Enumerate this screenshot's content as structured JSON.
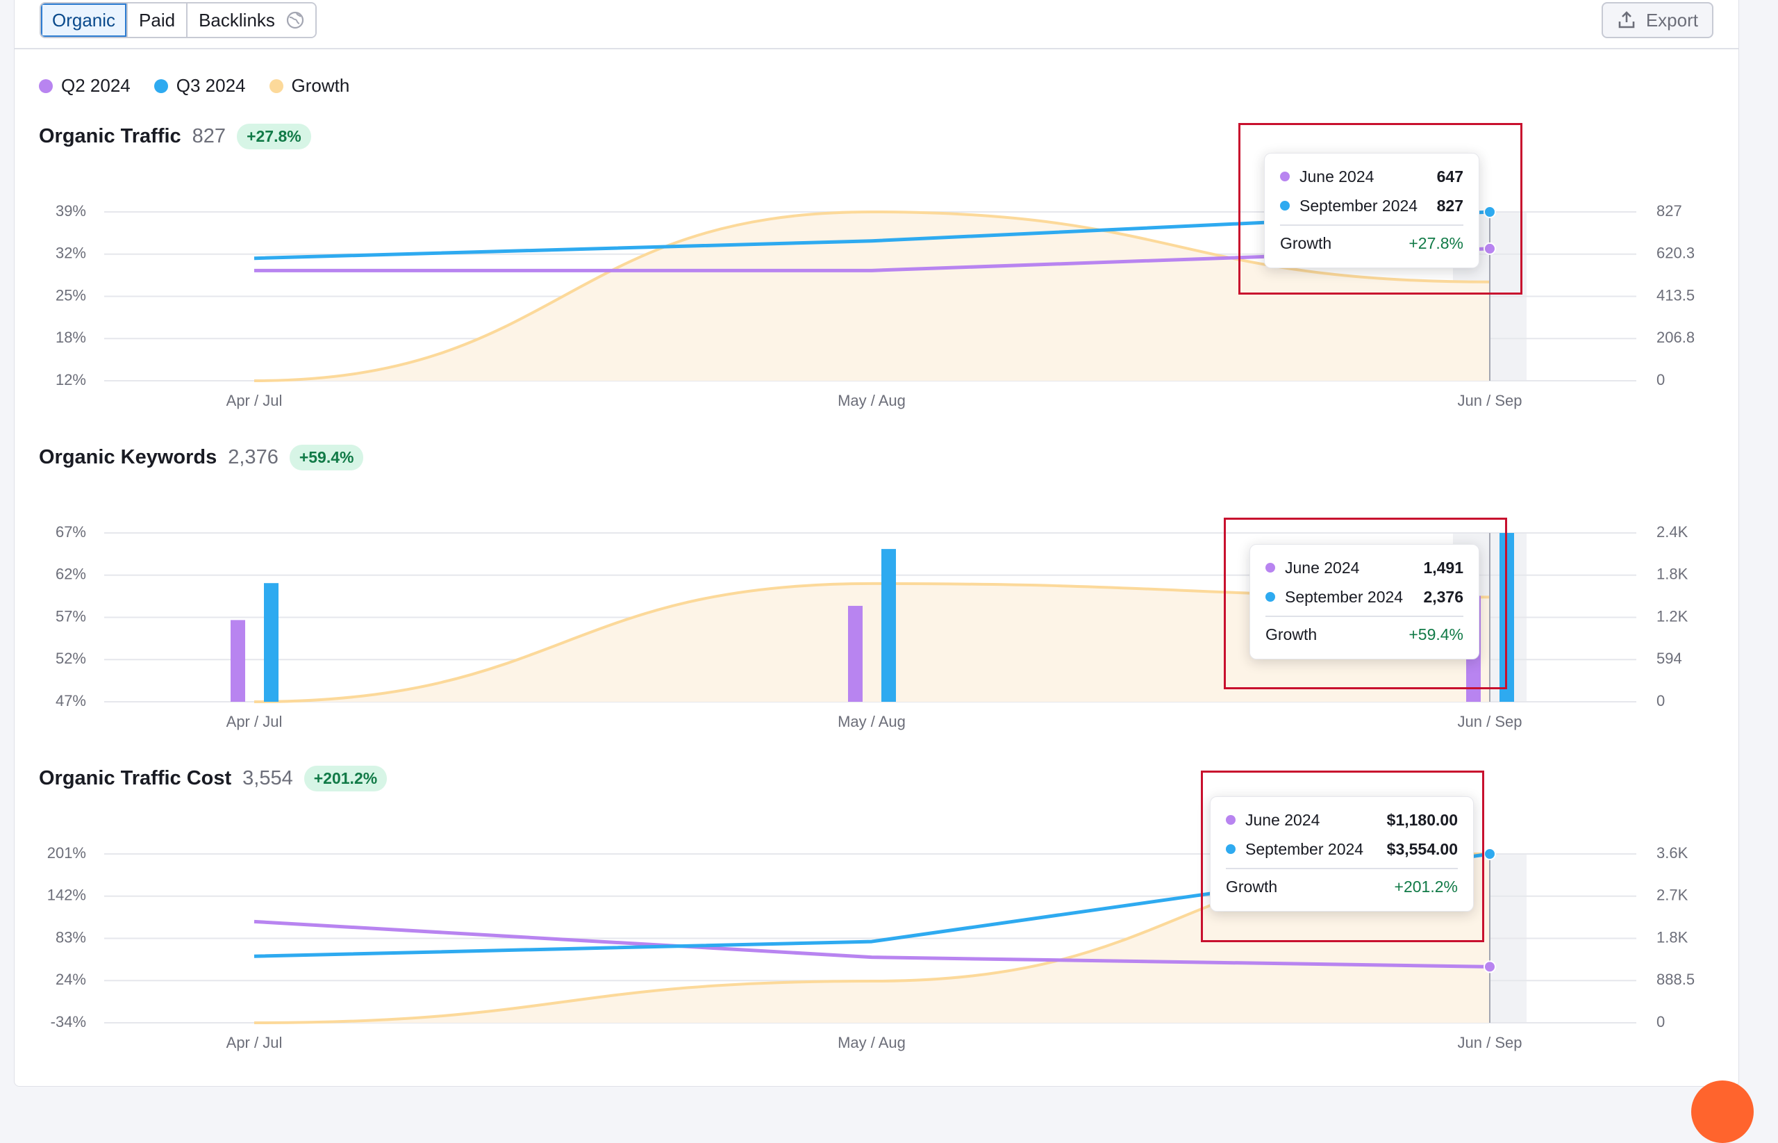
{
  "toolbar": {
    "tabs": [
      {
        "label": "Organic",
        "active": true
      },
      {
        "label": "Paid",
        "active": false
      },
      {
        "label": "Backlinks",
        "active": false,
        "icon": "globe-icon"
      }
    ],
    "export_label": "Export",
    "export_icon": "export-icon"
  },
  "legend": [
    {
      "label": "Q2 2024",
      "color": "#b884f0"
    },
    {
      "label": "Q3 2024",
      "color": "#2eaaf0"
    },
    {
      "label": "Growth",
      "color": "#fcd99a"
    }
  ],
  "colors": {
    "q2": "#b884f0",
    "q3": "#2eaaf0",
    "growth": "#fcd99a",
    "growth_fill": "#fdf4e7",
    "badge_text": "#117a47",
    "badge_bg": "#d7f5e6",
    "highlight": "#c8102e"
  },
  "charts": [
    {
      "title": "Organic Traffic",
      "value": "827",
      "badge": "+27.8%",
      "tooltip": {
        "rows": [
          {
            "label": "June 2024",
            "value": "647",
            "series": "q2"
          },
          {
            "label": "September 2024",
            "value": "827",
            "series": "q3"
          }
        ],
        "growth_label": "Growth",
        "growth_value": "+27.8%"
      }
    },
    {
      "title": "Organic Keywords",
      "value": "2,376",
      "badge": "+59.4%",
      "tooltip": {
        "rows": [
          {
            "label": "June 2024",
            "value": "1,491",
            "series": "q2"
          },
          {
            "label": "September 2024",
            "value": "2,376",
            "series": "q3"
          }
        ],
        "growth_label": "Growth",
        "growth_value": "+59.4%"
      }
    },
    {
      "title": "Organic Traffic Cost",
      "value": "3,554",
      "badge": "+201.2%",
      "tooltip": {
        "rows": [
          {
            "label": "June 2024",
            "value": "$1,180.00",
            "series": "q2"
          },
          {
            "label": "September 2024",
            "value": "$3,554.00",
            "series": "q3"
          }
        ],
        "growth_label": "Growth",
        "growth_value": "+201.2%"
      }
    }
  ],
  "chart_data": [
    {
      "type": "line",
      "categories": [
        "Apr / Jul",
        "May / Aug",
        "Jun / Sep"
      ],
      "left_ticks": [
        "39%",
        "32%",
        "25%",
        "18%",
        "12%"
      ],
      "right_ticks": [
        "827",
        "620.3",
        "413.5",
        "206.8",
        "0"
      ],
      "left_range": [
        12,
        39
      ],
      "right_range": [
        0,
        827
      ],
      "series": [
        {
          "name": "Q2 2024",
          "values": [
            540,
            540,
            647
          ]
        },
        {
          "name": "Q3 2024",
          "values": [
            600,
            685,
            827
          ]
        },
        {
          "name": "Growth",
          "axis": "left",
          "values": [
            12,
            39,
            27.8
          ]
        }
      ]
    },
    {
      "type": "bar",
      "categories": [
        "Apr / Jul",
        "May / Aug",
        "Jun / Sep"
      ],
      "left_ticks": [
        "67%",
        "62%",
        "57%",
        "52%",
        "47%"
      ],
      "right_ticks": [
        "2.4K",
        "1.8K",
        "1.2K",
        "594",
        "0"
      ],
      "left_range": [
        47,
        67
      ],
      "right_range": [
        0,
        2376
      ],
      "series": [
        {
          "name": "Q2 2024",
          "values": [
            1150,
            1350,
            1491
          ]
        },
        {
          "name": "Q3 2024",
          "values": [
            1670,
            2150,
            2376
          ]
        },
        {
          "name": "Growth",
          "axis": "left",
          "values": [
            47,
            61,
            59.4
          ]
        }
      ]
    },
    {
      "type": "line",
      "categories": [
        "Apr / Jul",
        "May / Aug",
        "Jun / Sep"
      ],
      "left_ticks": [
        "201%",
        "142%",
        "83%",
        "24%",
        "-34%"
      ],
      "right_ticks": [
        "3.6K",
        "2.7K",
        "1.8K",
        "888.5",
        "0"
      ],
      "left_range": [
        -34,
        201
      ],
      "right_range": [
        0,
        3554
      ],
      "series": [
        {
          "name": "Q2 2024",
          "values": [
            2130,
            1380,
            1180
          ]
        },
        {
          "name": "Q3 2024",
          "values": [
            1400,
            1710,
            3554
          ]
        },
        {
          "name": "Growth",
          "axis": "left",
          "values": [
            -34,
            24,
            201.2
          ]
        }
      ]
    }
  ]
}
